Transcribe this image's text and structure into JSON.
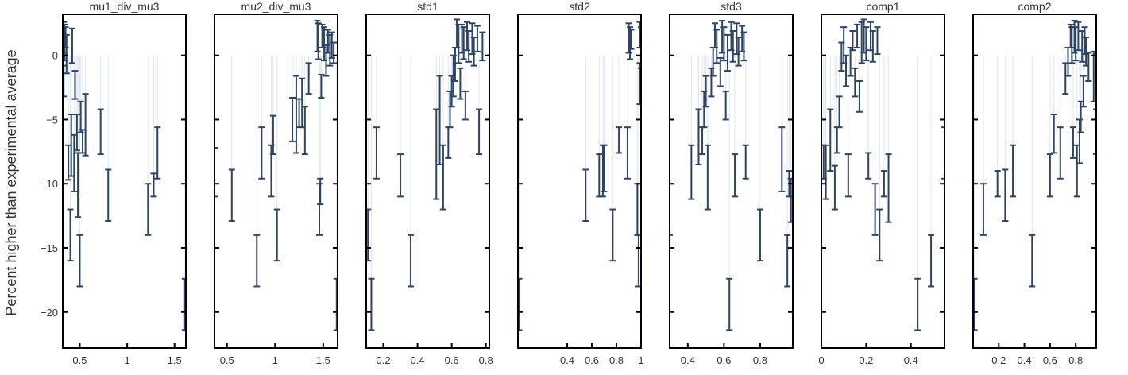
{
  "figure": {
    "ylabel": "Percent higher than experimental average"
  },
  "style": {
    "errorbar_color": "#2e4463",
    "stem_color": "#dfe5f3",
    "frame_color": "#000000"
  },
  "chart_data": [
    {
      "type": "scatter",
      "title": "mu1_div_mu3",
      "xlim": [
        0.32,
        1.62
      ],
      "ylim": [
        -22.8,
        3.2
      ],
      "xticks": [
        0.5,
        1,
        1.5
      ],
      "xtick_labels": [
        "0.5",
        "1",
        "1.5"
      ],
      "yticks": [
        0,
        -5,
        -10,
        -15,
        -20
      ],
      "ytick_labels": [
        "0",
        "−5",
        "−10",
        "−15",
        "−20"
      ],
      "points": [
        {
          "x": 0.33,
          "low": 0.2,
          "high": 2.6
        },
        {
          "x": 0.34,
          "low": -0.4,
          "high": 2.4
        },
        {
          "x": 0.35,
          "low": 0.6,
          "high": 2.2
        },
        {
          "x": 0.36,
          "low": -1.4,
          "high": 1.6
        },
        {
          "x": 0.33,
          "low": -3.2,
          "high": -0.8
        },
        {
          "x": 0.38,
          "low": -9.7,
          "high": -7.0
        },
        {
          "x": 0.4,
          "low": -16.0,
          "high": -12.0
        },
        {
          "x": 0.41,
          "low": -9.4,
          "high": -4.6
        },
        {
          "x": 0.42,
          "low": -0.6,
          "high": 2.1
        },
        {
          "x": 0.44,
          "low": -10.6,
          "high": -6.2
        },
        {
          "x": 0.45,
          "low": -3.4,
          "high": -1.2
        },
        {
          "x": 0.47,
          "low": -7.4,
          "high": -4.6
        },
        {
          "x": 0.48,
          "low": -12.6,
          "high": -7.6
        },
        {
          "x": 0.5,
          "low": -18.0,
          "high": -14.0
        },
        {
          "x": 0.51,
          "low": -6.0,
          "high": -3.6
        },
        {
          "x": 0.53,
          "low": -7.6,
          "high": -5.8
        },
        {
          "x": 0.56,
          "low": -7.8,
          "high": -3.0
        },
        {
          "x": 0.72,
          "low": -7.7,
          "high": -4.2
        },
        {
          "x": 0.8,
          "low": -12.9,
          "high": -8.9
        },
        {
          "x": 1.22,
          "low": -14.0,
          "high": -10.0
        },
        {
          "x": 1.28,
          "low": -11.0,
          "high": -9.2
        },
        {
          "x": 1.32,
          "low": -9.6,
          "high": -5.6
        },
        {
          "x": 1.61,
          "low": -21.4,
          "high": -17.4
        }
      ]
    },
    {
      "type": "scatter",
      "title": "mu2_div_mu3",
      "xlim": [
        0.37,
        1.65
      ],
      "ylim": [
        -22.8,
        3.2
      ],
      "xticks": [
        0.5,
        1,
        1.5
      ],
      "xtick_labels": [
        "0.5",
        "1",
        "1.5"
      ],
      "yticks": [
        0,
        -5,
        -10,
        -15,
        -20
      ],
      "ytick_labels": [
        "",
        "",
        "",
        "",
        ""
      ],
      "points": [
        {
          "x": 0.37,
          "low": -11.0,
          "high": -7.2
        },
        {
          "x": 0.55,
          "low": -12.9,
          "high": -8.9
        },
        {
          "x": 0.81,
          "low": -18.0,
          "high": -14.0
        },
        {
          "x": 0.86,
          "low": -9.6,
          "high": -5.6
        },
        {
          "x": 0.96,
          "low": -11.0,
          "high": -7.0
        },
        {
          "x": 0.98,
          "low": -7.7,
          "high": -4.7
        },
        {
          "x": 1.02,
          "low": -16.0,
          "high": -12.0
        },
        {
          "x": 1.18,
          "low": -6.7,
          "high": -3.3
        },
        {
          "x": 1.22,
          "low": -7.6,
          "high": -1.6
        },
        {
          "x": 1.25,
          "low": -5.6,
          "high": -3.4
        },
        {
          "x": 1.28,
          "low": -5.6,
          "high": -1.8
        },
        {
          "x": 1.31,
          "low": -7.7,
          "high": -4.0
        },
        {
          "x": 1.35,
          "low": -3.0,
          "high": -0.6
        },
        {
          "x": 1.44,
          "low": 0.3,
          "high": 2.7
        },
        {
          "x": 1.45,
          "low": -0.3,
          "high": 2.5
        },
        {
          "x": 1.46,
          "low": -14.0,
          "high": -10.0
        },
        {
          "x": 1.47,
          "low": -11.6,
          "high": -9.6
        },
        {
          "x": 1.48,
          "low": -3.3,
          "high": -1.5
        },
        {
          "x": 1.49,
          "low": 0.6,
          "high": 2.4
        },
        {
          "x": 1.51,
          "low": -0.4,
          "high": 2.2
        },
        {
          "x": 1.53,
          "low": -1.6,
          "high": 0.8
        },
        {
          "x": 1.55,
          "low": 0.2,
          "high": 2.0
        },
        {
          "x": 1.57,
          "low": -0.8,
          "high": 1.6
        },
        {
          "x": 1.59,
          "low": -0.2,
          "high": 1.8
        },
        {
          "x": 1.61,
          "low": -0.6,
          "high": 1.0
        },
        {
          "x": 1.64,
          "low": -21.4,
          "high": -17.4
        }
      ]
    },
    {
      "type": "scatter",
      "title": "std1",
      "xlim": [
        0.1,
        0.82
      ],
      "ylim": [
        -22.8,
        3.2
      ],
      "xticks": [
        0.2,
        0.4,
        0.6,
        0.8
      ],
      "xtick_labels": [
        "0.2",
        "0.4",
        "0.6",
        "0.8"
      ],
      "yticks": [
        0,
        -5,
        -10,
        -15,
        -20
      ],
      "ytick_labels": [
        "",
        "",
        "",
        "",
        ""
      ],
      "points": [
        {
          "x": 0.11,
          "low": -16.0,
          "high": -12.0
        },
        {
          "x": 0.13,
          "low": -21.4,
          "high": -17.4
        },
        {
          "x": 0.16,
          "low": -9.6,
          "high": -5.6
        },
        {
          "x": 0.3,
          "low": -11.0,
          "high": -7.7
        },
        {
          "x": 0.36,
          "low": -18.0,
          "high": -14.0
        },
        {
          "x": 0.51,
          "low": -11.2,
          "high": -4.2
        },
        {
          "x": 0.53,
          "low": -8.5,
          "high": -1.6
        },
        {
          "x": 0.55,
          "low": -12.0,
          "high": -7.0
        },
        {
          "x": 0.58,
          "low": -8.0,
          "high": -5.6
        },
        {
          "x": 0.59,
          "low": -5.6,
          "high": -2.8
        },
        {
          "x": 0.6,
          "low": -4.0,
          "high": -1.6
        },
        {
          "x": 0.61,
          "low": -3.2,
          "high": 0.0
        },
        {
          "x": 0.62,
          "low": -2.0,
          "high": 0.6
        },
        {
          "x": 0.63,
          "low": 0.6,
          "high": 2.8
        },
        {
          "x": 0.64,
          "low": -0.6,
          "high": 2.4
        },
        {
          "x": 0.65,
          "low": -3.4,
          "high": -1.0
        },
        {
          "x": 0.66,
          "low": 0.2,
          "high": 2.4
        },
        {
          "x": 0.67,
          "low": -0.3,
          "high": 2.2
        },
        {
          "x": 0.68,
          "low": -5.0,
          "high": -2.8
        },
        {
          "x": 0.69,
          "low": 0.4,
          "high": 2.6
        },
        {
          "x": 0.7,
          "low": -0.5,
          "high": 1.9
        },
        {
          "x": 0.72,
          "low": 0.1,
          "high": 2.5
        },
        {
          "x": 0.73,
          "low": -0.8,
          "high": 1.4
        },
        {
          "x": 0.75,
          "low": 0.3,
          "high": 2.3
        },
        {
          "x": 0.76,
          "low": -7.7,
          "high": -4.2
        },
        {
          "x": 0.78,
          "low": -0.4,
          "high": 1.8
        }
      ]
    },
    {
      "type": "scatter",
      "title": "std2",
      "xlim": [
        0.0,
        1.0
      ],
      "ylim": [
        -22.8,
        3.2
      ],
      "xticks": [
        0.4,
        0.6,
        0.8,
        1
      ],
      "xtick_labels": [
        "0.4",
        "0.6",
        "0.8",
        "1"
      ],
      "yticks": [
        0,
        -5,
        -10,
        -15,
        -20
      ],
      "ytick_labels": [
        "",
        "",
        "",
        "",
        ""
      ],
      "points": [
        {
          "x": 0.01,
          "low": -21.4,
          "high": -17.4
        },
        {
          "x": 0.55,
          "low": -12.9,
          "high": -8.9
        },
        {
          "x": 0.66,
          "low": -11.0,
          "high": -7.7
        },
        {
          "x": 0.69,
          "low": -11.0,
          "high": -7.0
        },
        {
          "x": 0.7,
          "low": -10.6,
          "high": -7.0
        },
        {
          "x": 0.77,
          "low": -16.0,
          "high": -12.0
        },
        {
          "x": 0.82,
          "low": -7.6,
          "high": -5.6
        },
        {
          "x": 0.89,
          "low": -9.6,
          "high": -5.6
        },
        {
          "x": 0.9,
          "low": 0.2,
          "high": 2.5
        },
        {
          "x": 0.91,
          "low": -0.3,
          "high": 2.2
        },
        {
          "x": 0.92,
          "low": 0.5,
          "high": 2.0
        },
        {
          "x": 0.97,
          "low": -14.0,
          "high": -10.0
        },
        {
          "x": 0.98,
          "low": -18.0,
          "high": -14.0
        },
        {
          "x": 0.99,
          "low": -3.8,
          "high": -0.6
        },
        {
          "x": 0.99,
          "low": 0.6,
          "high": 2.6
        },
        {
          "x": 1.0,
          "low": -1.0,
          "high": 2.2
        }
      ]
    },
    {
      "type": "scatter",
      "title": "std3",
      "xlim": [
        0.3,
        0.98
      ],
      "ylim": [
        -22.8,
        3.2
      ],
      "xticks": [
        0.4,
        0.6,
        0.8
      ],
      "xtick_labels": [
        "0.4",
        "0.6",
        "0.8"
      ],
      "yticks": [
        0,
        -5,
        -10,
        -15,
        -20
      ],
      "ytick_labels": [
        "",
        "",
        "",
        "",
        ""
      ],
      "points": [
        {
          "x": 0.3,
          "low": -14.0,
          "high": -10.0
        },
        {
          "x": 0.42,
          "low": -11.2,
          "high": -7.0
        },
        {
          "x": 0.46,
          "low": -8.5,
          "high": -4.2
        },
        {
          "x": 0.48,
          "low": -7.7,
          "high": -5.6
        },
        {
          "x": 0.49,
          "low": -5.6,
          "high": -2.8
        },
        {
          "x": 0.5,
          "low": -4.0,
          "high": -1.6
        },
        {
          "x": 0.51,
          "low": -12.0,
          "high": -7.0
        },
        {
          "x": 0.53,
          "low": -3.2,
          "high": -1.0
        },
        {
          "x": 0.54,
          "low": -1.6,
          "high": 0.6
        },
        {
          "x": 0.55,
          "low": 0.6,
          "high": 2.5
        },
        {
          "x": 0.56,
          "low": -0.6,
          "high": 2.0
        },
        {
          "x": 0.58,
          "low": -2.4,
          "high": -0.2
        },
        {
          "x": 0.59,
          "low": 0.2,
          "high": 2.7
        },
        {
          "x": 0.6,
          "low": -0.4,
          "high": 2.2
        },
        {
          "x": 0.61,
          "low": -5.0,
          "high": -2.8
        },
        {
          "x": 0.62,
          "low": -1.2,
          "high": 1.6
        },
        {
          "x": 0.63,
          "low": -21.4,
          "high": -17.4
        },
        {
          "x": 0.64,
          "low": 0.4,
          "high": 2.6
        },
        {
          "x": 0.65,
          "low": -0.5,
          "high": 1.9
        },
        {
          "x": 0.66,
          "low": -11.0,
          "high": -7.7
        },
        {
          "x": 0.67,
          "low": 0.1,
          "high": 2.5
        },
        {
          "x": 0.68,
          "low": -0.8,
          "high": 1.4
        },
        {
          "x": 0.7,
          "low": 0.3,
          "high": 2.3
        },
        {
          "x": 0.71,
          "low": -0.4,
          "high": 1.8
        },
        {
          "x": 0.72,
          "low": -9.6,
          "high": -7.0
        },
        {
          "x": 0.8,
          "low": -16.0,
          "high": -12.0
        },
        {
          "x": 0.92,
          "low": -10.6,
          "high": -5.6
        },
        {
          "x": 0.95,
          "low": -18.0,
          "high": -14.0
        },
        {
          "x": 0.96,
          "low": -11.0,
          "high": -9.0
        },
        {
          "x": 0.97,
          "low": -13.0,
          "high": -9.6
        }
      ]
    },
    {
      "type": "scatter",
      "title": "comp1",
      "xlim": [
        0.0,
        0.55
      ],
      "ylim": [
        -22.8,
        3.2
      ],
      "xticks": [
        0,
        0.2,
        0.4
      ],
      "xtick_labels": [
        "0",
        "0.2",
        "0.4"
      ],
      "yticks": [
        0,
        -5,
        -10,
        -15,
        -20
      ],
      "ytick_labels": [
        "",
        "",
        "",
        "",
        ""
      ],
      "points": [
        {
          "x": 0.01,
          "low": -9.6,
          "high": -7.0
        },
        {
          "x": 0.02,
          "low": -11.2,
          "high": -7.0
        },
        {
          "x": 0.04,
          "low": -9.0,
          "high": -4.2
        },
        {
          "x": 0.06,
          "low": -12.0,
          "high": -8.6
        },
        {
          "x": 0.07,
          "low": -7.6,
          "high": -5.6
        },
        {
          "x": 0.08,
          "low": -5.6,
          "high": -3.2
        },
        {
          "x": 0.09,
          "low": -1.2,
          "high": 1.0
        },
        {
          "x": 0.1,
          "low": -0.6,
          "high": 2.2
        },
        {
          "x": 0.11,
          "low": -2.4,
          "high": 0.0
        },
        {
          "x": 0.12,
          "low": -11.0,
          "high": -7.7
        },
        {
          "x": 0.13,
          "low": -1.6,
          "high": 0.6
        },
        {
          "x": 0.14,
          "low": 0.4,
          "high": 1.9
        },
        {
          "x": 0.15,
          "low": -3.2,
          "high": -1.0
        },
        {
          "x": 0.16,
          "low": 0.6,
          "high": 2.4
        },
        {
          "x": 0.17,
          "low": -4.4,
          "high": -2.0
        },
        {
          "x": 0.18,
          "low": -0.6,
          "high": 2.6
        },
        {
          "x": 0.19,
          "low": 0.2,
          "high": 2.8
        },
        {
          "x": 0.2,
          "low": -0.4,
          "high": 2.2
        },
        {
          "x": 0.21,
          "low": -9.6,
          "high": -7.6
        },
        {
          "x": 0.22,
          "low": 0.4,
          "high": 2.6
        },
        {
          "x": 0.23,
          "low": -0.5,
          "high": 1.9
        },
        {
          "x": 0.24,
          "low": -14.0,
          "high": -10.0
        },
        {
          "x": 0.25,
          "low": 0.1,
          "high": 2.2
        },
        {
          "x": 0.26,
          "low": -16.0,
          "high": -12.0
        },
        {
          "x": 0.28,
          "low": -11.0,
          "high": -9.0
        },
        {
          "x": 0.3,
          "low": -13.0,
          "high": -7.7
        },
        {
          "x": 0.43,
          "low": -21.4,
          "high": -17.4
        },
        {
          "x": 0.49,
          "low": -18.0,
          "high": -14.0
        },
        {
          "x": 0.55,
          "low": -9.6,
          "high": -5.6
        }
      ]
    },
    {
      "type": "scatter",
      "title": "comp2",
      "xlim": [
        0.0,
        0.96
      ],
      "ylim": [
        -22.8,
        3.2
      ],
      "xticks": [
        0.2,
        0.4,
        0.6,
        0.8
      ],
      "xtick_labels": [
        "0.2",
        "0.4",
        "0.6",
        "0.8"
      ],
      "yticks": [
        0,
        -5,
        -10,
        -15,
        -20
      ],
      "ytick_labels": [
        "",
        "",
        "",
        "",
        ""
      ],
      "points": [
        {
          "x": 0.01,
          "low": -21.4,
          "high": -17.4
        },
        {
          "x": 0.08,
          "low": -14.0,
          "high": -10.0
        },
        {
          "x": 0.19,
          "low": -11.0,
          "high": -9.0
        },
        {
          "x": 0.25,
          "low": -12.9,
          "high": -8.9
        },
        {
          "x": 0.31,
          "low": -11.0,
          "high": -7.0
        },
        {
          "x": 0.46,
          "low": -18.0,
          "high": -14.0
        },
        {
          "x": 0.6,
          "low": -11.0,
          "high": -7.7
        },
        {
          "x": 0.63,
          "low": -7.6,
          "high": -4.6
        },
        {
          "x": 0.68,
          "low": -9.6,
          "high": -5.6
        },
        {
          "x": 0.72,
          "low": -3.0,
          "high": -0.6
        },
        {
          "x": 0.74,
          "low": -1.6,
          "high": 0.6
        },
        {
          "x": 0.76,
          "low": 0.6,
          "high": 2.4
        },
        {
          "x": 0.77,
          "low": -0.6,
          "high": 2.2
        },
        {
          "x": 0.78,
          "low": -8.0,
          "high": -5.6
        },
        {
          "x": 0.79,
          "low": 0.2,
          "high": 2.7
        },
        {
          "x": 0.8,
          "low": -0.4,
          "high": 2.2
        },
        {
          "x": 0.81,
          "low": -11.0,
          "high": -7.0
        },
        {
          "x": 0.82,
          "low": 0.4,
          "high": 2.6
        },
        {
          "x": 0.83,
          "low": -8.4,
          "high": -5.0
        },
        {
          "x": 0.84,
          "low": -6.0,
          "high": -3.6
        },
        {
          "x": 0.85,
          "low": -0.5,
          "high": 1.9
        },
        {
          "x": 0.86,
          "low": -4.0,
          "high": -1.6
        },
        {
          "x": 0.87,
          "low": 0.1,
          "high": 2.2
        },
        {
          "x": 0.88,
          "low": -0.8,
          "high": 1.4
        },
        {
          "x": 0.9,
          "low": -2.0,
          "high": 0.2
        },
        {
          "x": 0.94,
          "low": -3.6,
          "high": 0.3
        },
        {
          "x": 0.96,
          "low": -7.7,
          "high": -4.2
        }
      ]
    }
  ]
}
